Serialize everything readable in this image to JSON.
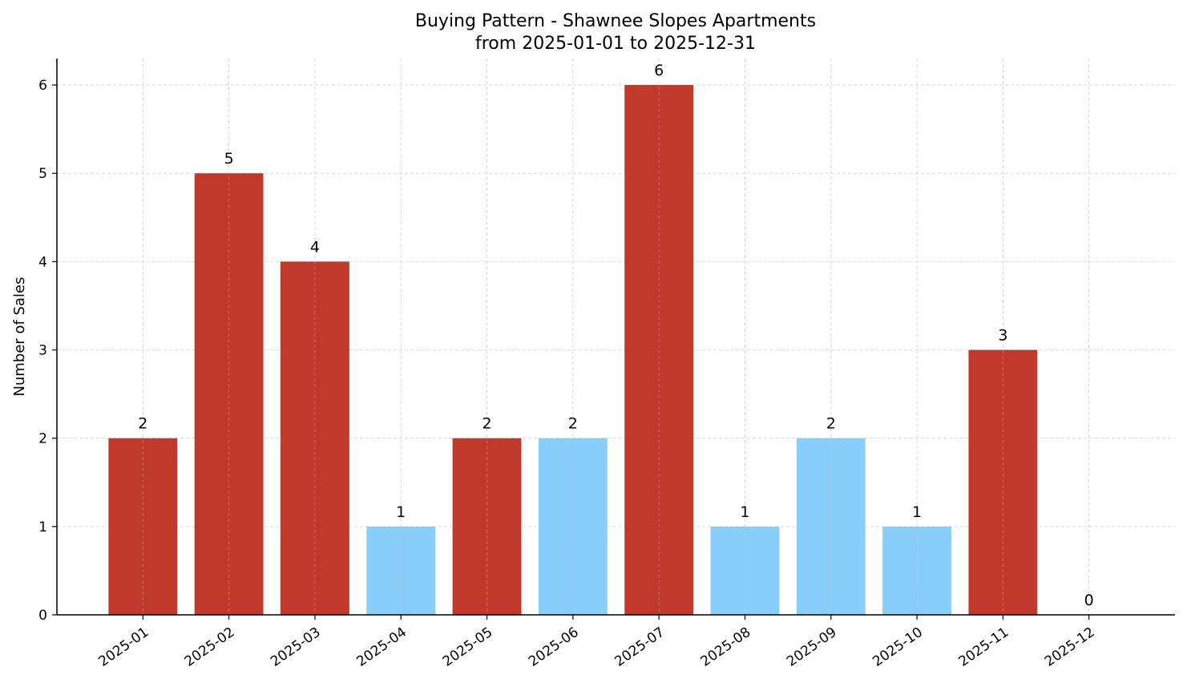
{
  "chart_data": {
    "type": "bar",
    "title": "Buying Pattern - Shawnee Slopes Apartments",
    "subtitle": "from 2025-01-01 to 2025-12-31",
    "xlabel": "",
    "ylabel": "Number of Sales",
    "categories": [
      "2025-01",
      "2025-02",
      "2025-03",
      "2025-04",
      "2025-05",
      "2025-06",
      "2025-07",
      "2025-08",
      "2025-09",
      "2025-10",
      "2025-11",
      "2025-12"
    ],
    "values": [
      2,
      5,
      4,
      1,
      2,
      2,
      6,
      1,
      2,
      1,
      3,
      0
    ],
    "bar_colors": [
      "#c0392b",
      "#c0392b",
      "#c0392b",
      "#87cefa",
      "#c0392b",
      "#87cefa",
      "#c0392b",
      "#87cefa",
      "#87cefa",
      "#87cefa",
      "#c0392b",
      "#c0392b"
    ],
    "ylim": [
      0,
      6.3
    ],
    "yticks": [
      0,
      1,
      2,
      3,
      4,
      5,
      6
    ],
    "grid": true,
    "legend": "none"
  }
}
